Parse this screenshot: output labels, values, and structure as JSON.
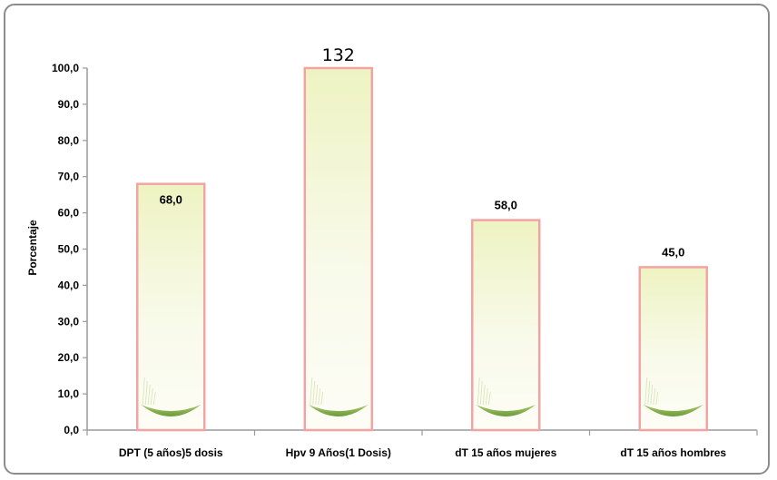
{
  "chart_data": {
    "type": "bar",
    "ylabel": "Porcentaje",
    "xlabel": "",
    "ylim": [
      0,
      100
    ],
    "yticks": [
      "0,0",
      "10,0",
      "20,0",
      "30,0",
      "40,0",
      "50,0",
      "60,0",
      "70,0",
      "80,0",
      "90,0",
      "100,0"
    ],
    "categories": [
      "DPT (5 años)5 dosis",
      "Hpv 9 Años(1 Dosis)",
      "dT 15 años mujeres",
      "dT 15 años hombres"
    ],
    "values": [
      68.0,
      132,
      58.0,
      45.0
    ],
    "data_labels": [
      "68,0",
      "132",
      "58,0",
      "45,0"
    ],
    "grid": false,
    "legend": "none",
    "colors": {
      "bar_border": "#f4a3a3",
      "bar_fill_top": "#eef3c6",
      "bar_fill_mid": "#fbfcef",
      "grass": "#7aa83a"
    }
  }
}
